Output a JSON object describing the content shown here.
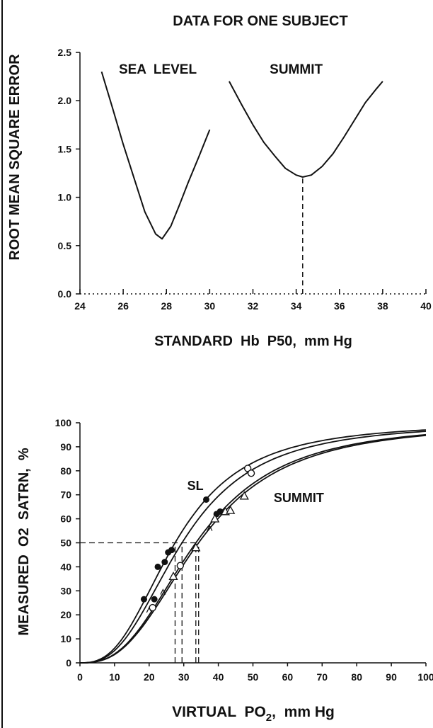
{
  "chart_data": [
    {
      "type": "line",
      "title": "DATA FOR ONE SUBJECT",
      "xlabel": "STANDARD  Hb  P50,  mm Hg",
      "ylabel": "ROOT  MEAN  SQUARE  ERROR",
      "xlim": [
        24,
        40
      ],
      "ylim": [
        0,
        2.5
      ],
      "xticks": [
        24,
        26,
        28,
        30,
        32,
        34,
        36,
        38,
        40
      ],
      "yticks": [
        0.0,
        0.5,
        1.0,
        1.5,
        2.0,
        2.5
      ],
      "grid": false,
      "annotations": [
        {
          "text": "SEA  LEVEL",
          "x": 27.6,
          "y": 2.28
        },
        {
          "text": "SUMMIT",
          "x": 34.0,
          "y": 2.28
        }
      ],
      "reference_lines": [
        {
          "orientation": "vertical",
          "style": "dashed",
          "x": 34.3,
          "y_from": 0,
          "y_to": 1.2
        }
      ],
      "series": [
        {
          "x": [
            25.0,
            25.5,
            26.0,
            26.5,
            27.0,
            27.5,
            27.8,
            28.2,
            28.6,
            29.0,
            29.5,
            30.0
          ],
          "y": [
            2.3,
            1.93,
            1.55,
            1.2,
            0.85,
            0.62,
            0.57,
            0.7,
            0.92,
            1.15,
            1.42,
            1.7
          ]
        },
        {
          "x": [
            30.9,
            31.5,
            32.0,
            32.5,
            33.0,
            33.5,
            34.0,
            34.3,
            34.7,
            35.2,
            35.7,
            36.2,
            36.7,
            37.2,
            37.7,
            38.0
          ],
          "y": [
            2.2,
            1.95,
            1.75,
            1.57,
            1.43,
            1.3,
            1.23,
            1.21,
            1.23,
            1.32,
            1.45,
            1.62,
            1.8,
            1.98,
            2.12,
            2.2
          ]
        }
      ]
    },
    {
      "type": "line",
      "xlabel": "VIRTUAL  PO",
      "xlabel_sub": "2",
      "xlabel_suffix": ",  mm Hg",
      "ylabel": "MEASURED  O2  SATRN,  %",
      "xlim": [
        0,
        100
      ],
      "ylim": [
        0,
        100
      ],
      "xticks": [
        0,
        10,
        20,
        30,
        40,
        50,
        60,
        70,
        80,
        90,
        100
      ],
      "yticks": [
        0,
        10,
        20,
        30,
        40,
        50,
        60,
        70,
        80,
        90,
        100
      ],
      "grid": false,
      "annotations": [
        {
          "text": "SL",
          "x": 31,
          "y": 72
        },
        {
          "text": "SUMMIT",
          "x": 56,
          "y": 67
        }
      ],
      "reference_lines": [
        {
          "orientation": "horizontal",
          "style": "dashed",
          "y": 50,
          "x_from": 0,
          "x_to": 34.5
        },
        {
          "orientation": "vertical",
          "style": "dashed",
          "x": 27.5,
          "y_from": 0,
          "y_to": 50
        },
        {
          "orientation": "vertical",
          "style": "dashed",
          "x": 29.5,
          "y_from": 0,
          "y_to": 50
        },
        {
          "orientation": "vertical",
          "style": "dashed",
          "x": 33.5,
          "y_from": 0,
          "y_to": 50
        },
        {
          "orientation": "vertical",
          "style": "dashed",
          "x": 34.3,
          "y_from": 0,
          "y_to": 50
        }
      ],
      "series": [
        {
          "curve": "dissociation",
          "p50": 27.5
        },
        {
          "curve": "dissociation",
          "p50": 29.5
        },
        {
          "curve": "dissociation",
          "p50": 33.5
        },
        {
          "curve": "dissociation",
          "p50": 34.3
        }
      ],
      "points": [
        {
          "marker": "filled-circle",
          "x": 18.5,
          "y": 26.5
        },
        {
          "marker": "filled-circle",
          "x": 21.5,
          "y": 26.5
        },
        {
          "marker": "filled-circle",
          "x": 22.5,
          "y": 40
        },
        {
          "marker": "filled-circle",
          "x": 24.5,
          "y": 42
        },
        {
          "marker": "filled-circle",
          "x": 25.5,
          "y": 46
        },
        {
          "marker": "filled-circle",
          "x": 26.5,
          "y": 47
        },
        {
          "marker": "filled-circle",
          "x": 36.5,
          "y": 68
        },
        {
          "marker": "filled-circle",
          "x": 39.5,
          "y": 62
        },
        {
          "marker": "filled-circle",
          "x": 40.5,
          "y": 63
        },
        {
          "marker": "open-circle",
          "x": 21,
          "y": 23
        },
        {
          "marker": "open-circle",
          "x": 29,
          "y": 40.5
        },
        {
          "marker": "open-circle",
          "x": 48.5,
          "y": 81
        },
        {
          "marker": "open-circle",
          "x": 49.5,
          "y": 79
        },
        {
          "marker": "open-triangle",
          "x": 27,
          "y": 36
        },
        {
          "marker": "open-triangle",
          "x": 33.5,
          "y": 48
        },
        {
          "marker": "open-triangle",
          "x": 39,
          "y": 60
        },
        {
          "marker": "open-triangle",
          "x": 42,
          "y": 63
        },
        {
          "marker": "open-triangle",
          "x": 43.5,
          "y": 63.5
        },
        {
          "marker": "open-triangle",
          "x": 47.5,
          "y": 69.5
        },
        {
          "marker": "small-triangle",
          "x": 20,
          "y": 22
        },
        {
          "marker": "small-triangle",
          "x": 24,
          "y": 29.5
        },
        {
          "marker": "small-triangle",
          "x": 37.5,
          "y": 56
        }
      ]
    }
  ]
}
